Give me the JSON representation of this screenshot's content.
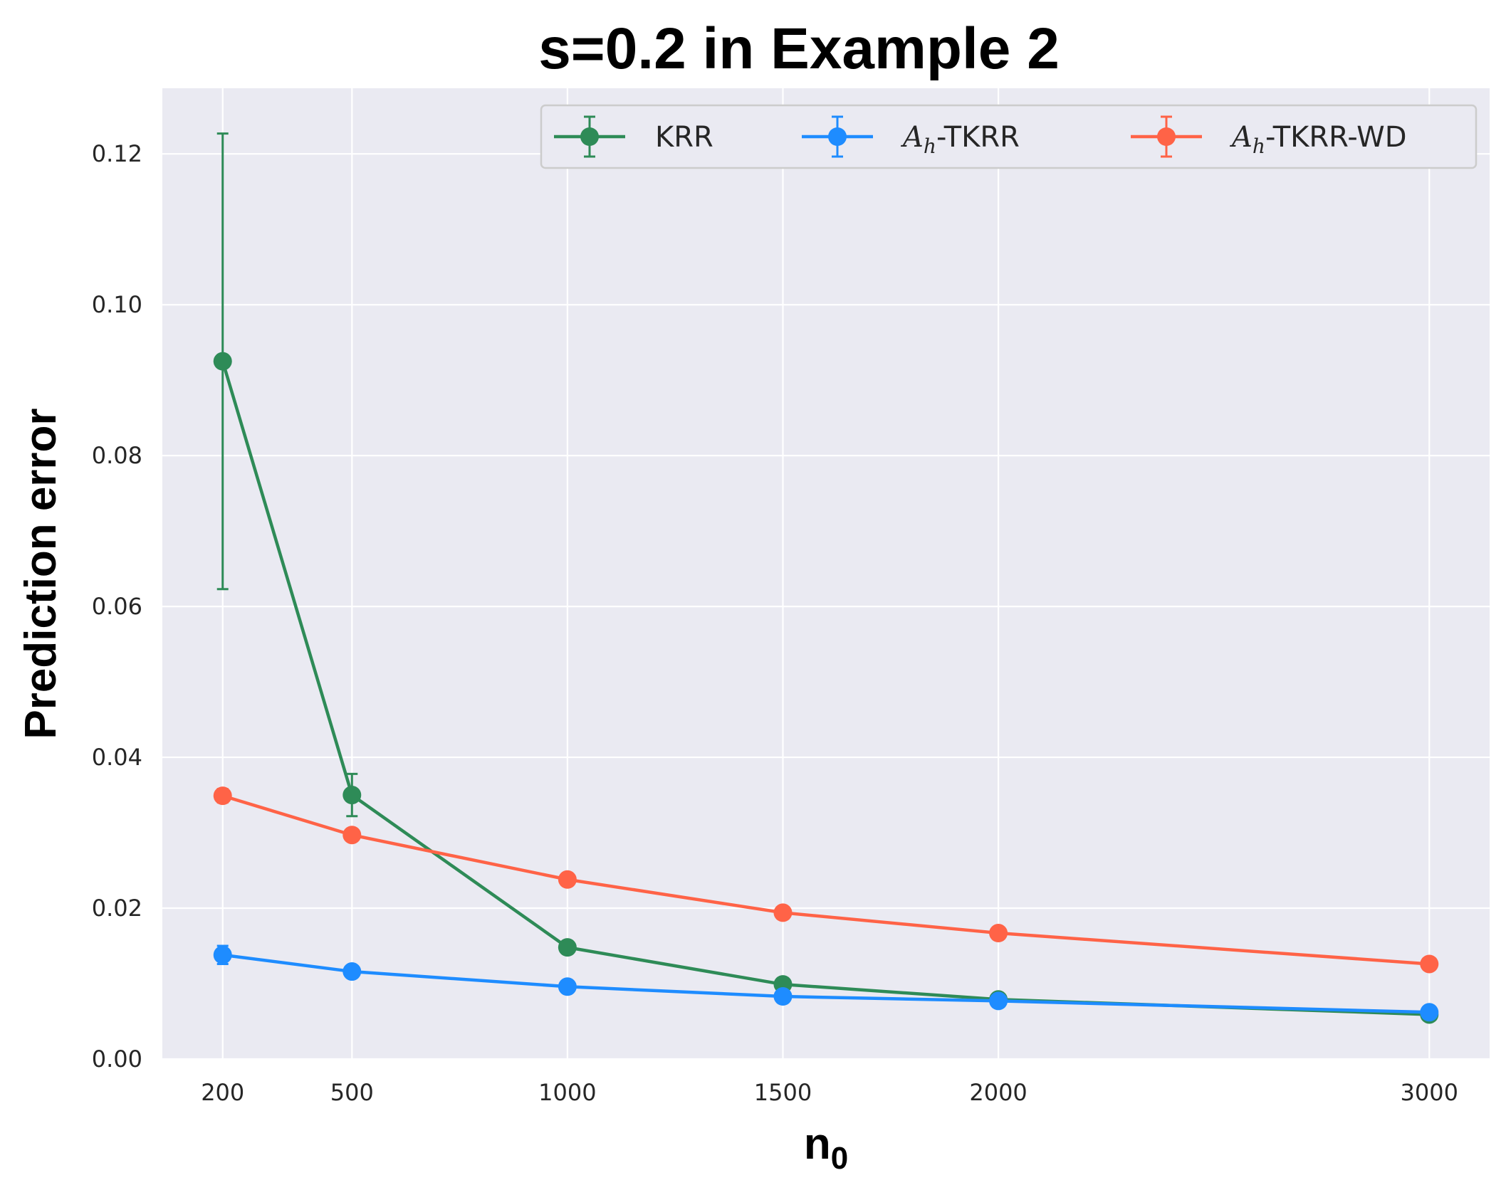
{
  "chart_data": {
    "type": "line",
    "title": "s=0.2 in Example 2",
    "xlabel": "n",
    "xlabel_sub": "0",
    "ylabel": "Prediction error",
    "x": [
      200,
      500,
      1000,
      1500,
      2000,
      3000
    ],
    "x_ticks": [
      "200",
      "500",
      "1000",
      "1500",
      "2000",
      "3000"
    ],
    "y_ticks": [
      "0.00",
      "0.02",
      "0.04",
      "0.06",
      "0.08",
      "0.10",
      "0.12"
    ],
    "xlim": [
      60,
      3140
    ],
    "ylim": [
      0,
      0.1287
    ],
    "grid": true,
    "background": "#eaeaf2",
    "legend_position": "top-right",
    "series": [
      {
        "name": "KRR",
        "name_main": "KRR",
        "name_suffix": "",
        "color": "#2e8b57",
        "values": [
          0.0925,
          0.035,
          0.0148,
          0.0099,
          0.0079,
          0.0059
        ],
        "errors": [
          0.0302,
          0.0028,
          0.0004,
          0.0002,
          0.0002,
          0.0002
        ]
      },
      {
        "name": "A_h-TKRR",
        "name_main": "A",
        "name_suffix": "-TKRR",
        "color": "#1e8cff",
        "values": [
          0.0138,
          0.0116,
          0.0096,
          0.0083,
          0.0077,
          0.0062
        ],
        "errors": [
          0.0012,
          0.0004,
          0.0002,
          0.0002,
          0.0002,
          0.0002
        ]
      },
      {
        "name": "A_h-TKRR-WD",
        "name_main": "A",
        "name_suffix": "-TKRR-WD",
        "color": "#ff6347",
        "values": [
          0.0349,
          0.0297,
          0.0238,
          0.0194,
          0.0167,
          0.0126
        ],
        "errors": [
          0.0009,
          0.0003,
          0.0003,
          0.0002,
          0.0002,
          0.0002
        ]
      }
    ],
    "legend_subscript": "h"
  }
}
